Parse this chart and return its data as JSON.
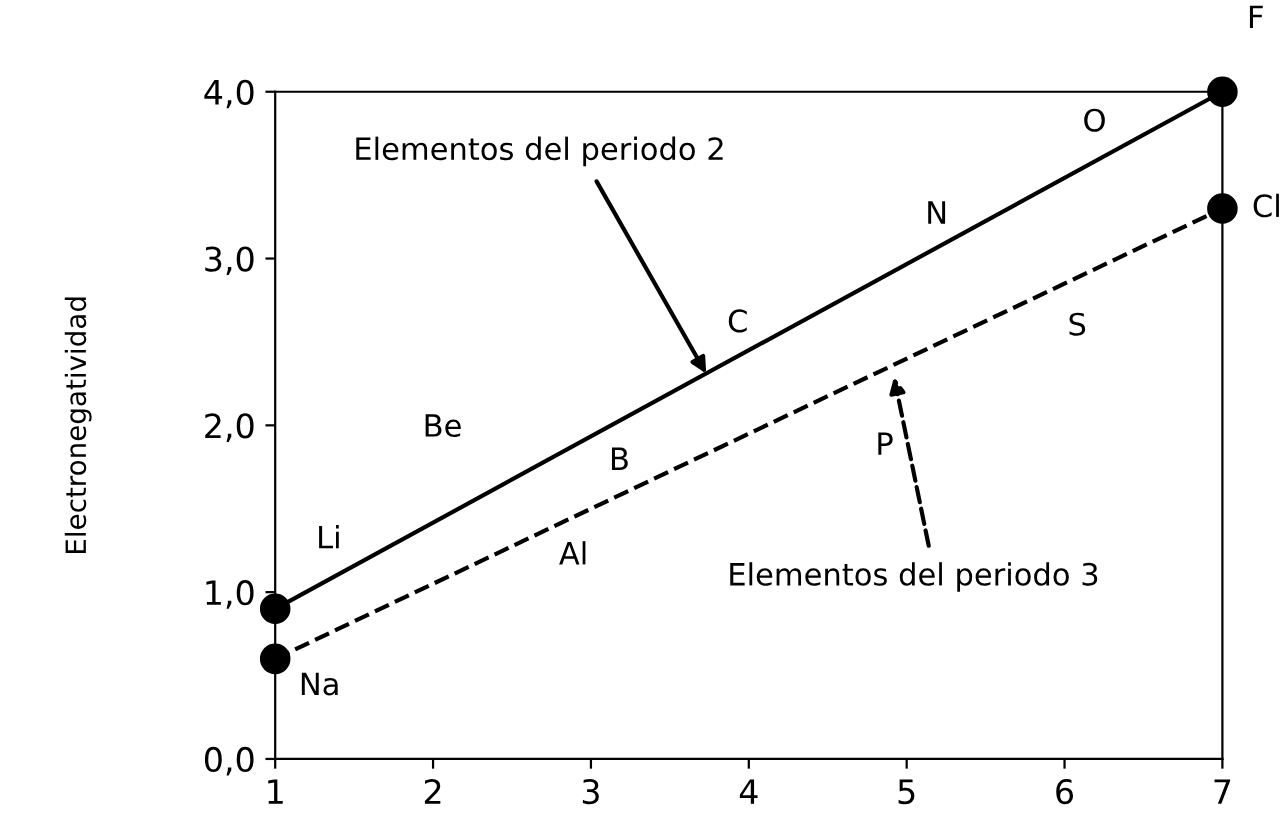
{
  "chart_data": {
    "type": "line",
    "ylabel": "Electronegatividad",
    "x": [
      1,
      7
    ],
    "series": [
      {
        "color": "#000000",
        "values": [
          0.9,
          4.0
        ],
        "line_style": "solid",
        "marker": "circle"
      },
      {
        "color": "#000000",
        "values": [
          0.6,
          3.3
        ],
        "line_style": "dashed",
        "marker": "circle"
      }
    ],
    "xlim": [
      1,
      7
    ],
    "xticks": [
      1,
      2,
      3,
      4,
      5,
      6,
      7
    ],
    "ylim": [
      0,
      4
    ],
    "yticks": [
      {
        "value": 0,
        "label": "0,0"
      },
      {
        "value": 1,
        "label": "1,0"
      },
      {
        "value": 2,
        "label": "2,0"
      },
      {
        "value": 3,
        "label": "3,0"
      },
      {
        "value": 4,
        "label": "4,0"
      }
    ],
    "grid": false,
    "legend": false,
    "annotations": [
      {
        "text": "Li",
        "x": 1.34,
        "y": 1.08
      },
      {
        "text": "Be",
        "x": 2.06,
        "y": 1.45
      },
      {
        "text": "B",
        "x": 3.04,
        "y": 1.95
      },
      {
        "text": "C",
        "x": 3.93,
        "y": 2.41
      },
      {
        "text": "N",
        "x": 5.19,
        "y": 3.06
      },
      {
        "text": "O",
        "x": 6.19,
        "y": 3.58
      },
      {
        "text": "F",
        "x": 7,
        "y": 4.0
      },
      {
        "text": "Na",
        "x": 1,
        "y": 0.6
      },
      {
        "text": "Al",
        "x": 2.89,
        "y": 1.45
      },
      {
        "text": "P",
        "x": 4.86,
        "y": 2.34
      },
      {
        "text": "S",
        "x": 6.08,
        "y": 2.89
      },
      {
        "text": "Cl",
        "x": 7,
        "y": 3.3
      },
      {
        "text": "Elementos del periodo 2",
        "x": 3.73,
        "y": 2.31
      },
      {
        "text": "Elementos del periodo 3",
        "x": 4.92,
        "y": 2.29
      }
    ]
  }
}
